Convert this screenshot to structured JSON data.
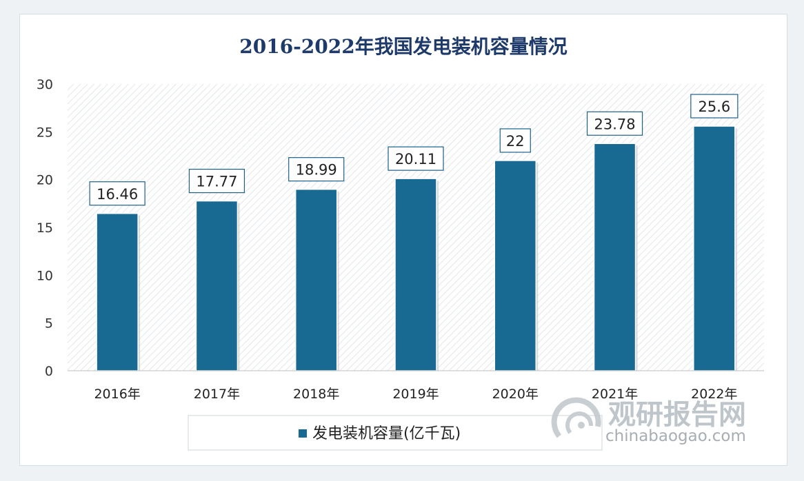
{
  "chart_data": {
    "type": "bar",
    "title": "2016-2022年我国发电装机容量情况",
    "categories": [
      "2016年",
      "2017年",
      "2018年",
      "2019年",
      "2020年",
      "2021年",
      "2022年"
    ],
    "series": [
      {
        "name": "发电装机容量(亿千瓦)",
        "values": [
          16.46,
          17.77,
          18.99,
          20.11,
          22,
          23.78,
          25.6
        ]
      }
    ],
    "data_labels": [
      "16.46",
      "17.77",
      "18.99",
      "20.11",
      "22",
      "23.78",
      "25.6"
    ],
    "y_ticks": [
      "0",
      "5",
      "10",
      "15",
      "20",
      "25",
      "30"
    ],
    "ylim": [
      0,
      30
    ],
    "legend_position": "bottom",
    "grid": false,
    "colors": {
      "bar": "#186a93",
      "title": "#1e3a6a"
    }
  },
  "watermark": {
    "cn": "观研报告网",
    "en": "chinabaogao.com"
  }
}
